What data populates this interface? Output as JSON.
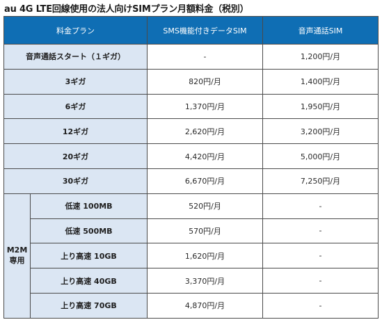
{
  "title": "au 4G LTE回線使用の法人向けSIMプラン月額料金（税別）",
  "headers": {
    "plan": "料金プラン",
    "data_sim": "SMS機能付きデータSIM",
    "voice_sim": "音声通話SIM"
  },
  "rows": [
    {
      "plan": "音声通話スタート（１ギガ）",
      "data_sim": "-",
      "voice_sim": "1,200円/月"
    },
    {
      "plan": "3ギガ",
      "data_sim": "820円/月",
      "voice_sim": "1,400円/月"
    },
    {
      "plan": "6ギガ",
      "data_sim": "1,370円/月",
      "voice_sim": "1,950円/月"
    },
    {
      "plan": "12ギガ",
      "data_sim": "2,620円/月",
      "voice_sim": "3,200円/月"
    },
    {
      "plan": "20ギガ",
      "data_sim": "4,420円/月",
      "voice_sim": "5,000円/月"
    },
    {
      "plan": "30ギガ",
      "data_sim": "6,670円/月",
      "voice_sim": "7,250円/月"
    }
  ],
  "m2m": {
    "label_line1": "M2M",
    "label_line2": "専用",
    "rows": [
      {
        "plan": "低速 100MB",
        "data_sim": "520円/月",
        "voice_sim": "-"
      },
      {
        "plan": "低速 500MB",
        "data_sim": "570円/月",
        "voice_sim": "-"
      },
      {
        "plan": "上り高速 10GB",
        "data_sim": "1,620円/月",
        "voice_sim": "-"
      },
      {
        "plan": "上り高速 40GB",
        "data_sim": "3,370円/月",
        "voice_sim": "-"
      },
      {
        "plan": "上り高速 70GB",
        "data_sim": "4,870円/月",
        "voice_sim": "-"
      }
    ]
  }
}
